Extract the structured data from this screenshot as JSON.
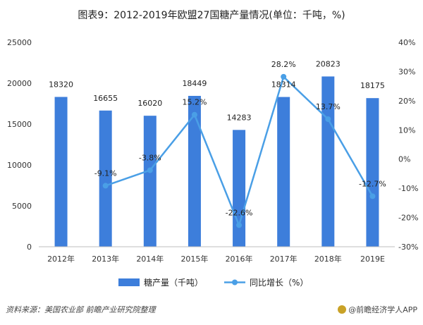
{
  "chart_data": {
    "type": "bar",
    "title": "图表9：2012-2019年欧盟27国糖产量情况(单位：千吨，%)",
    "categories": [
      "2012年",
      "2013年",
      "2014年",
      "2015年",
      "2016年",
      "2017年",
      "2018年",
      "2019E"
    ],
    "series": [
      {
        "name": "糖产量（千吨）",
        "type": "bar",
        "axis": "left",
        "color": "#3d7edb",
        "values": [
          18320,
          16655,
          16020,
          18449,
          14283,
          18314,
          20823,
          18175
        ]
      },
      {
        "name": "同比增长（%）",
        "type": "line",
        "axis": "right",
        "color": "#4a9fe6",
        "values": [
          null,
          -9.1,
          -3.8,
          15.2,
          -22.6,
          28.2,
          13.7,
          -12.7
        ]
      }
    ],
    "bar_labels": [
      "18320",
      "16655",
      "16020",
      "18449",
      "14283",
      "18314",
      "20823",
      "18175"
    ],
    "line_labels": [
      "",
      "-9.1%",
      "-3.8%",
      "15.2%",
      "-22.6%",
      "28.2%",
      "13.7%",
      "-12.7%"
    ],
    "ylim_left": [
      0,
      25000
    ],
    "yticks_left": [
      "0",
      "5000",
      "10000",
      "15000",
      "20000",
      "25000"
    ],
    "ylim_right": [
      -30,
      40
    ],
    "yticks_right": [
      "-30%",
      "-20%",
      "-10%",
      "0%",
      "10%",
      "20%",
      "30%",
      "40%"
    ],
    "legend_position": "bottom",
    "grid": false
  },
  "footer": {
    "source": "资料来源：美国农业部 前瞻产业研究院整理",
    "brand": "@前瞻经济学人APP"
  },
  "colors": {
    "bar": "#3d7edb",
    "line": "#4a9fe6",
    "axis": "#bfbfbf"
  }
}
